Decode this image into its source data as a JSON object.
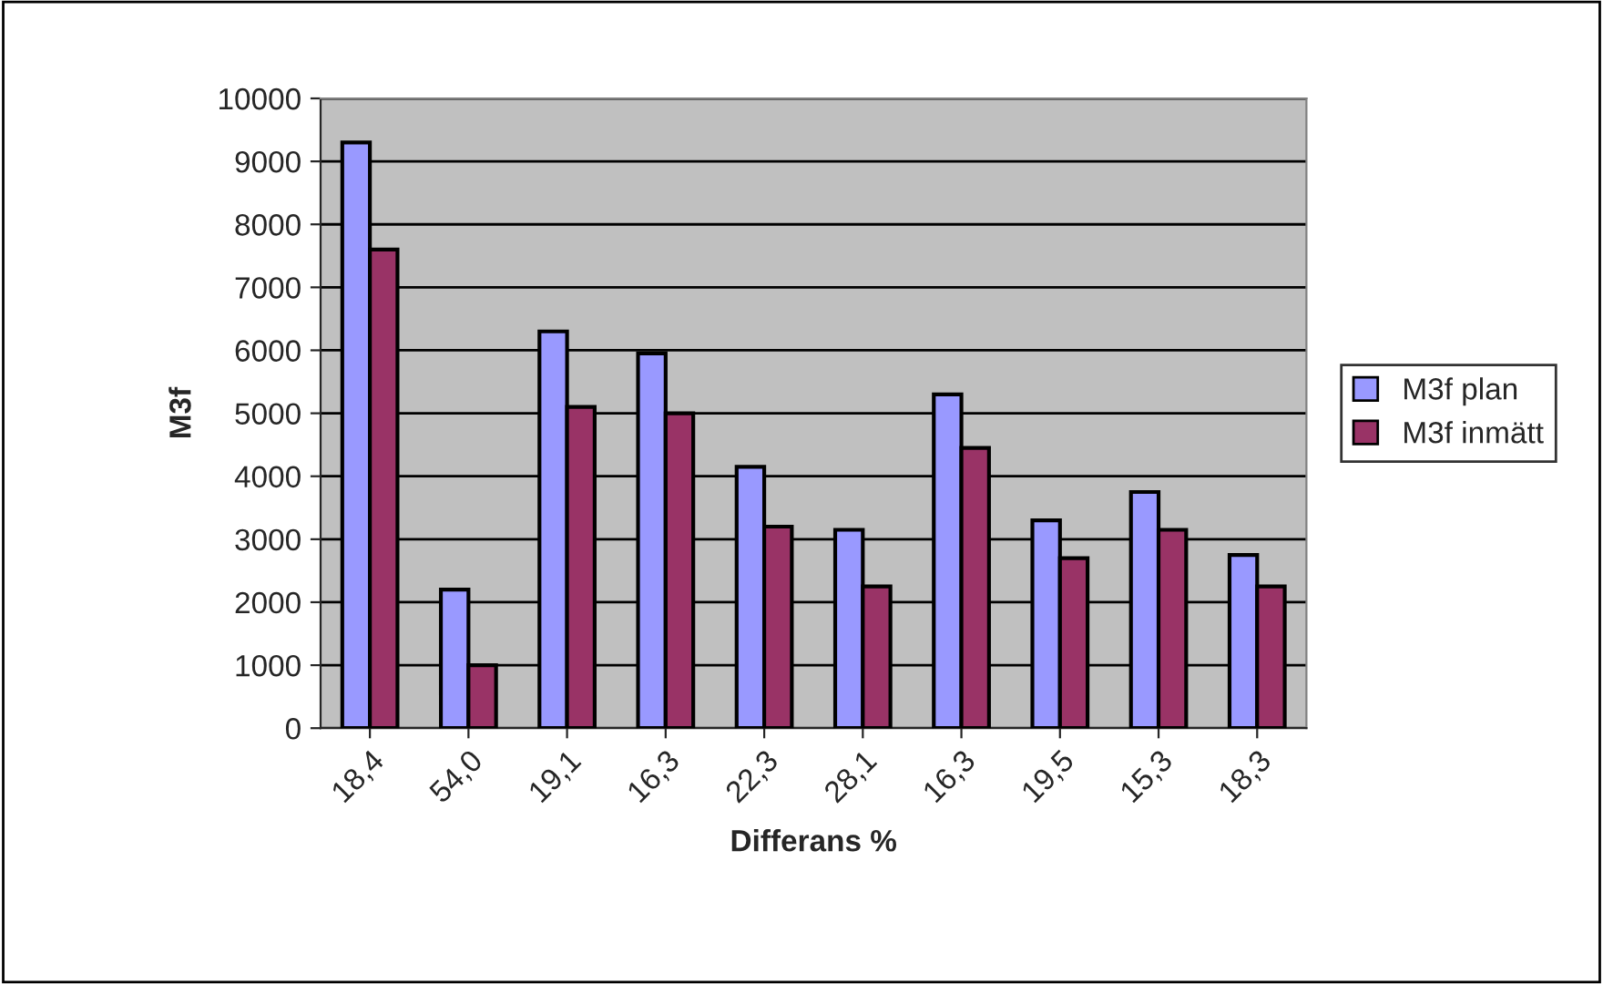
{
  "chart_data": {
    "type": "bar",
    "xlabel": "Differans %",
    "ylabel": "M3f",
    "categories": [
      "18,4",
      "54,0",
      "19,1",
      "16,3",
      "22,3",
      "28,1",
      "16,3",
      "19,5",
      "15,3",
      "18,3"
    ],
    "series": [
      {
        "name": "M3f plan",
        "color": "#9999ff",
        "values": [
          9300,
          2200,
          6300,
          5950,
          4150,
          3150,
          5300,
          3300,
          3750,
          2750
        ]
      },
      {
        "name": "M3f inmätt",
        "color": "#993366",
        "values": [
          7600,
          1000,
          5100,
          5000,
          3200,
          2250,
          4450,
          2700,
          3150,
          2250
        ]
      }
    ],
    "ylim": [
      0,
      10000
    ],
    "yticks": [
      0,
      1000,
      2000,
      3000,
      4000,
      5000,
      6000,
      7000,
      8000,
      9000,
      10000
    ],
    "grid": "y",
    "legend": "right"
  }
}
